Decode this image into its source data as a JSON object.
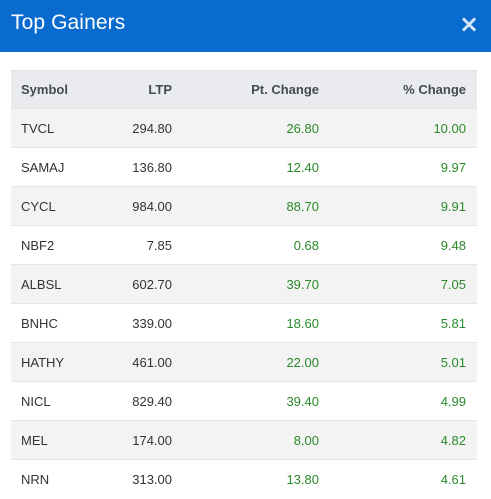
{
  "header": {
    "title": "Top Gainers",
    "close_symbol": "×"
  },
  "table": {
    "columns": [
      "Symbol",
      "LTP",
      "Pt. Change",
      "% Change"
    ],
    "rows": [
      {
        "symbol": "TVCL",
        "ltp": "294.80",
        "pt_change": "26.80",
        "pct_change": "10.00"
      },
      {
        "symbol": "SAMAJ",
        "ltp": "136.80",
        "pt_change": "12.40",
        "pct_change": "9.97"
      },
      {
        "symbol": "CYCL",
        "ltp": "984.00",
        "pt_change": "88.70",
        "pct_change": "9.91"
      },
      {
        "symbol": "NBF2",
        "ltp": "7.85",
        "pt_change": "0.68",
        "pct_change": "9.48"
      },
      {
        "symbol": "ALBSL",
        "ltp": "602.70",
        "pt_change": "39.70",
        "pct_change": "7.05"
      },
      {
        "symbol": "BNHC",
        "ltp": "339.00",
        "pt_change": "18.60",
        "pct_change": "5.81"
      },
      {
        "symbol": "HATHY",
        "ltp": "461.00",
        "pt_change": "22.00",
        "pct_change": "5.01"
      },
      {
        "symbol": "NICL",
        "ltp": "829.40",
        "pt_change": "39.40",
        "pct_change": "4.99"
      },
      {
        "symbol": "MEL",
        "ltp": "174.00",
        "pt_change": "8.00",
        "pct_change": "4.82"
      },
      {
        "symbol": "NRN",
        "ltp": "313.00",
        "pt_change": "13.80",
        "pct_change": "4.61"
      }
    ]
  },
  "colors": {
    "header_bg": "#0a6bcf",
    "positive": "#2a8a2a"
  }
}
